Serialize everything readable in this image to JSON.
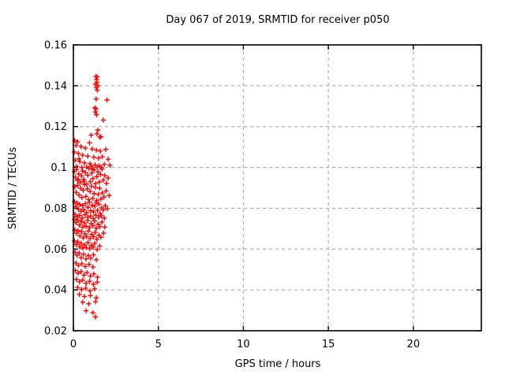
{
  "chart_data": {
    "type": "scatter",
    "title": "Day 067 of 2019, SRMTID for receiver p050",
    "xlabel": "GPS time / hours",
    "ylabel": "SRMTID / TECUs",
    "xlim": [
      0,
      24
    ],
    "ylim": [
      0.02,
      0.16
    ],
    "x_ticks": [
      0,
      5,
      10,
      15,
      20
    ],
    "x_tick_labels": [
      "0",
      "5",
      "10",
      "15",
      "20"
    ],
    "y_ticks": [
      0.02,
      0.04,
      0.06,
      0.08,
      0.1,
      0.12,
      0.14,
      0.16
    ],
    "y_tick_labels": [
      "0.02",
      "0.04",
      "0.06",
      "0.08",
      "0.1",
      "0.12",
      "0.14",
      "0.16"
    ],
    "grid": true,
    "legend": "none",
    "marker": "plus",
    "marker_color": "#ff0000",
    "grid_color": "#9e9e9e",
    "border_color": "#000000",
    "series": [
      {
        "name": "SRMTID",
        "color": "#ff0000",
        "points": [
          [
            1.32,
            0.1445
          ],
          [
            1.4,
            0.1443
          ],
          [
            1.36,
            0.143
          ],
          [
            1.38,
            0.1418
          ],
          [
            1.3,
            0.1408
          ],
          [
            1.44,
            0.14
          ],
          [
            1.35,
            0.139
          ],
          [
            1.41,
            0.1378
          ],
          [
            1.34,
            0.1335
          ],
          [
            1.98,
            0.133
          ],
          [
            1.26,
            0.1292
          ],
          [
            1.33,
            0.1286
          ],
          [
            1.29,
            0.1272
          ],
          [
            1.36,
            0.1258
          ],
          [
            1.76,
            0.1232
          ],
          [
            1.44,
            0.1183
          ],
          [
            1.39,
            0.1165
          ],
          [
            1.05,
            0.1158
          ],
          [
            0.08,
            0.1132
          ],
          [
            0.25,
            0.1125
          ],
          [
            0.95,
            0.112
          ],
          [
            1.55,
            0.1148
          ],
          [
            1.62,
            0.115
          ],
          [
            0.15,
            0.1108
          ],
          [
            0.45,
            0.1102
          ],
          [
            0.7,
            0.1095
          ],
          [
            1.1,
            0.109
          ],
          [
            1.35,
            0.1085
          ],
          [
            1.58,
            0.108
          ],
          [
            1.9,
            0.1088
          ],
          [
            0.05,
            0.1075
          ],
          [
            0.3,
            0.1068
          ],
          [
            0.55,
            0.106
          ],
          [
            0.85,
            0.1055
          ],
          [
            1.2,
            0.105
          ],
          [
            1.48,
            0.1045
          ],
          [
            1.7,
            0.1052
          ],
          [
            2.05,
            0.104
          ],
          [
            0.1,
            0.1035
          ],
          [
            0.38,
            0.1028
          ],
          [
            0.65,
            0.1022
          ],
          [
            0.98,
            0.1018
          ],
          [
            1.28,
            0.1012
          ],
          [
            1.52,
            0.1008
          ],
          [
            1.82,
            0.1015
          ],
          [
            0.2,
            0.1005
          ],
          [
            0.5,
            0.1
          ],
          [
            0.78,
            0.1002
          ],
          [
            1.05,
            0.1006
          ],
          [
            1.4,
            0.1002
          ],
          [
            1.65,
            0.1
          ],
          [
            2.15,
            0.101
          ],
          [
            0.33,
            0.1042
          ],
          [
            0.05,
            0.098
          ],
          [
            0.12,
            0.0952
          ],
          [
            0.18,
            0.099
          ],
          [
            0.25,
            0.0935
          ],
          [
            0.32,
            0.0968
          ],
          [
            0.4,
            0.0925
          ],
          [
            0.48,
            0.0958
          ],
          [
            0.55,
            0.0982
          ],
          [
            0.62,
            0.094
          ],
          [
            0.7,
            0.0975
          ],
          [
            0.78,
            0.0918
          ],
          [
            0.85,
            0.0962
          ],
          [
            0.92,
            0.0995
          ],
          [
            1.0,
            0.093
          ],
          [
            1.08,
            0.0972
          ],
          [
            1.15,
            0.0945
          ],
          [
            1.22,
            0.0988
          ],
          [
            1.3,
            0.092
          ],
          [
            1.38,
            0.0955
          ],
          [
            1.45,
            0.0978
          ],
          [
            1.52,
            0.0928
          ],
          [
            1.6,
            0.0965
          ],
          [
            1.68,
            0.0992
          ],
          [
            1.75,
            0.0938
          ],
          [
            1.85,
            0.096
          ],
          [
            1.95,
            0.0922
          ],
          [
            2.05,
            0.0948
          ],
          [
            0.08,
            0.0905
          ],
          [
            0.16,
            0.0878
          ],
          [
            0.24,
            0.0912
          ],
          [
            0.33,
            0.0865
          ],
          [
            0.42,
            0.0898
          ],
          [
            0.5,
            0.0852
          ],
          [
            0.58,
            0.0888
          ],
          [
            0.66,
            0.0915
          ],
          [
            0.74,
            0.0858
          ],
          [
            0.82,
            0.0895
          ],
          [
            0.9,
            0.0842
          ],
          [
            0.98,
            0.0882
          ],
          [
            1.06,
            0.0908
          ],
          [
            1.14,
            0.0848
          ],
          [
            1.22,
            0.0872
          ],
          [
            1.3,
            0.0902
          ],
          [
            1.38,
            0.0838
          ],
          [
            1.46,
            0.0868
          ],
          [
            1.54,
            0.0898
          ],
          [
            1.62,
            0.0845
          ],
          [
            1.7,
            0.0875
          ],
          [
            1.8,
            0.0855
          ],
          [
            1.92,
            0.0885
          ],
          [
            2.1,
            0.0862
          ],
          [
            0.06,
            0.0832
          ],
          [
            0.14,
            0.0808
          ],
          [
            0.22,
            0.0825
          ],
          [
            0.3,
            0.0795
          ],
          [
            0.38,
            0.0818
          ],
          [
            0.46,
            0.0785
          ],
          [
            0.54,
            0.0812
          ],
          [
            0.62,
            0.0792
          ],
          [
            0.7,
            0.0822
          ],
          [
            0.78,
            0.0778
          ],
          [
            0.86,
            0.0805
          ],
          [
            0.94,
            0.083
          ],
          [
            1.02,
            0.0788
          ],
          [
            1.1,
            0.0815
          ],
          [
            1.18,
            0.0782
          ],
          [
            1.26,
            0.081
          ],
          [
            1.34,
            0.0828
          ],
          [
            1.42,
            0.079
          ],
          [
            1.5,
            0.082
          ],
          [
            1.58,
            0.0775
          ],
          [
            1.66,
            0.0802
          ],
          [
            1.76,
            0.0792
          ],
          [
            1.88,
            0.0812
          ],
          [
            2.0,
            0.0798
          ],
          [
            0.1,
            0.077
          ],
          [
            0.2,
            0.0758
          ],
          [
            0.35,
            0.0765
          ],
          [
            0.52,
            0.0752
          ],
          [
            0.68,
            0.0768
          ],
          [
            0.84,
            0.0755
          ],
          [
            1.0,
            0.0762
          ],
          [
            1.16,
            0.075
          ],
          [
            1.32,
            0.0766
          ],
          [
            1.48,
            0.0756
          ],
          [
            1.64,
            0.0764
          ],
          [
            1.82,
            0.0752
          ],
          [
            0.28,
            0.0942
          ],
          [
            0.6,
            0.0932
          ],
          [
            1.12,
            0.0992
          ],
          [
            0.05,
            0.0745
          ],
          [
            0.15,
            0.073
          ],
          [
            0.25,
            0.0742
          ],
          [
            0.35,
            0.0718
          ],
          [
            0.45,
            0.0735
          ],
          [
            0.55,
            0.0708
          ],
          [
            0.65,
            0.0728
          ],
          [
            0.75,
            0.0712
          ],
          [
            0.85,
            0.074
          ],
          [
            0.95,
            0.0705
          ],
          [
            1.05,
            0.0725
          ],
          [
            1.15,
            0.0715
          ],
          [
            1.25,
            0.0738
          ],
          [
            1.35,
            0.0702
          ],
          [
            1.45,
            0.0722
          ],
          [
            1.55,
            0.071
          ],
          [
            1.68,
            0.0732
          ],
          [
            1.85,
            0.0708
          ],
          [
            0.08,
            0.0695
          ],
          [
            0.18,
            0.0678
          ],
          [
            0.28,
            0.069
          ],
          [
            0.38,
            0.0665
          ],
          [
            0.48,
            0.0685
          ],
          [
            0.58,
            0.0655
          ],
          [
            0.68,
            0.0675
          ],
          [
            0.78,
            0.0662
          ],
          [
            0.88,
            0.0688
          ],
          [
            0.98,
            0.0652
          ],
          [
            1.08,
            0.0672
          ],
          [
            1.18,
            0.066
          ],
          [
            1.28,
            0.0682
          ],
          [
            1.38,
            0.0648
          ],
          [
            1.5,
            0.0668
          ],
          [
            1.62,
            0.0658
          ],
          [
            1.78,
            0.0678
          ],
          [
            0.06,
            0.064
          ],
          [
            0.16,
            0.0622
          ],
          [
            0.26,
            0.0635
          ],
          [
            0.36,
            0.0612
          ],
          [
            0.46,
            0.0628
          ],
          [
            0.56,
            0.0605
          ],
          [
            0.66,
            0.062
          ],
          [
            0.76,
            0.0608
          ],
          [
            0.86,
            0.0632
          ],
          [
            0.96,
            0.0602
          ],
          [
            1.06,
            0.0618
          ],
          [
            1.16,
            0.061
          ],
          [
            1.26,
            0.0628
          ],
          [
            1.4,
            0.0598
          ],
          [
            1.55,
            0.0615
          ],
          [
            0.1,
            0.0585
          ],
          [
            0.22,
            0.057
          ],
          [
            0.34,
            0.058
          ],
          [
            0.46,
            0.0558
          ],
          [
            0.6,
            0.0575
          ],
          [
            0.74,
            0.0552
          ],
          [
            0.88,
            0.0568
          ],
          [
            1.02,
            0.0555
          ],
          [
            1.18,
            0.0572
          ],
          [
            1.35,
            0.0548
          ],
          [
            0.15,
            0.0532
          ],
          [
            0.3,
            0.052
          ],
          [
            0.5,
            0.0528
          ],
          [
            0.7,
            0.0515
          ],
          [
            0.92,
            0.0525
          ],
          [
            1.15,
            0.0512
          ],
          [
            0.12,
            0.0495
          ],
          [
            0.28,
            0.0482
          ],
          [
            0.45,
            0.049
          ],
          [
            0.62,
            0.0472
          ],
          [
            0.8,
            0.0485
          ],
          [
            1.0,
            0.0468
          ],
          [
            1.2,
            0.0478
          ],
          [
            1.42,
            0.0462
          ],
          [
            0.18,
            0.0452
          ],
          [
            0.36,
            0.044
          ],
          [
            0.55,
            0.0448
          ],
          [
            0.75,
            0.0432
          ],
          [
            0.95,
            0.0442
          ],
          [
            1.18,
            0.0428
          ],
          [
            1.4,
            0.0438
          ],
          [
            0.25,
            0.0412
          ],
          [
            0.48,
            0.0402
          ],
          [
            0.72,
            0.0408
          ],
          [
            0.98,
            0.0395
          ],
          [
            1.25,
            0.0405
          ],
          [
            0.35,
            0.0378
          ],
          [
            0.65,
            0.0368
          ],
          [
            1.0,
            0.0372
          ],
          [
            1.35,
            0.0362
          ],
          [
            0.55,
            0.034
          ],
          [
            0.9,
            0.0332
          ],
          [
            1.3,
            0.0342
          ],
          [
            0.75,
            0.0298
          ],
          [
            1.15,
            0.0288
          ],
          [
            1.3,
            0.0268
          ]
        ]
      }
    ]
  }
}
